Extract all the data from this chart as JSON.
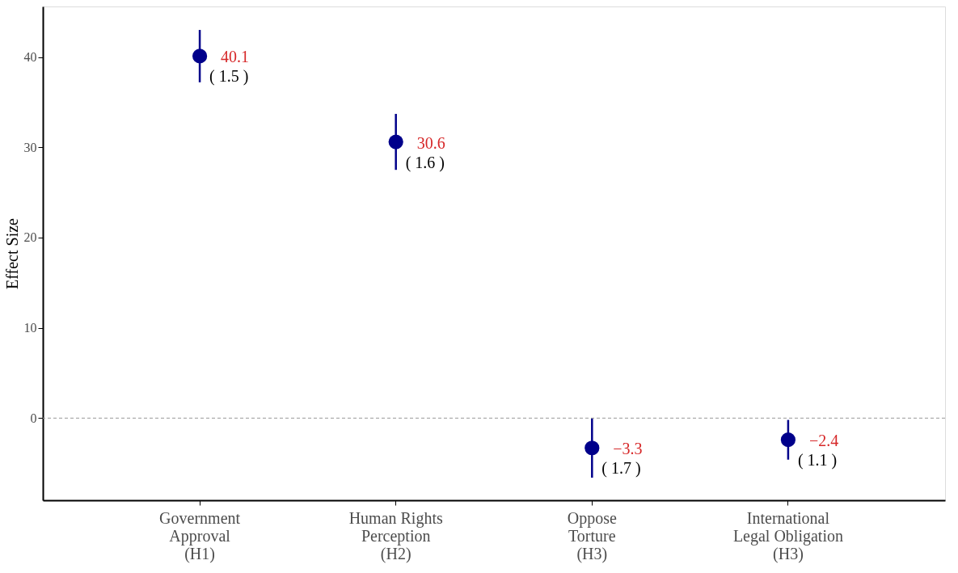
{
  "chart_data": {
    "type": "scatter",
    "ylabel": "Effect Size",
    "categories": [
      "Government\nApproval\n(H1)",
      "Human Rights\nPerception\n(H2)",
      "Oppose\nTorture\n(H3)",
      "International\nLegal Obligation\n(H3)"
    ],
    "series": [
      {
        "color": "#00008b",
        "values": [
          40.1,
          30.6,
          -3.3,
          -2.4
        ],
        "errors": [
          2.9,
          3.1,
          3.3,
          2.2
        ],
        "value_labels": [
          "40.1",
          "30.6",
          "−3.3",
          "−2.4"
        ]
      }
    ],
    "annotations": [
      "( 1.5 )",
      "( 1.6 )",
      "( 1.7 )",
      "( 1.1 )"
    ],
    "ylim": [
      -9.1,
      45.6
    ],
    "yticks": [
      0,
      10,
      20,
      30,
      40
    ],
    "ref_lines": [
      {
        "axis": "y",
        "value": 0,
        "color": "#999999",
        "line_style": "dashed"
      }
    ],
    "marker": "circle",
    "grid": false
  }
}
